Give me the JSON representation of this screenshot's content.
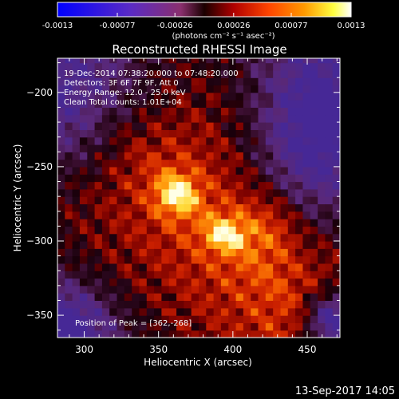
{
  "colorbar": {
    "tick_labels": [
      "-0.0013",
      "-0.00077",
      "-0.00026",
      "0.00026",
      "0.00077",
      "0.0013"
    ],
    "range": [
      -0.0013,
      0.0013
    ],
    "units_label": "(photons cm⁻² s⁻¹ asec⁻²)",
    "colors": [
      "#0000ff",
      "#5b2bc4",
      "#8a2f6e",
      "#1a0000",
      "#b00000",
      "#ff4500",
      "#ff9900",
      "#ffff40",
      "#ffffff"
    ]
  },
  "chart_data": {
    "type": "heatmap",
    "title": "Reconstructed RHESSI Image",
    "xlabel": "Heliocentric X (arcsec)",
    "ylabel": "Heliocentric Y (arcsec)",
    "xlim": [
      282,
      472
    ],
    "ylim": [
      -365,
      -177
    ],
    "x_ticks": [
      300,
      350,
      400,
      450
    ],
    "y_ticks": [
      -200,
      -250,
      -300,
      -350
    ],
    "peak": {
      "x": 362,
      "y": -268
    },
    "annotations": [
      "19-Dec-2014 07:38:20.000 to 07:48:20.000",
      "Detectors: 3F 6F 7F 9F, Att 0",
      "Energy Range: 12.0 - 25.0 keV",
      "Clean     Total counts: 1.01E+04",
      "Position of Peak = [362,-268]"
    ]
  },
  "footer": {
    "timestamp": "13-Sep-2017 14:05"
  }
}
